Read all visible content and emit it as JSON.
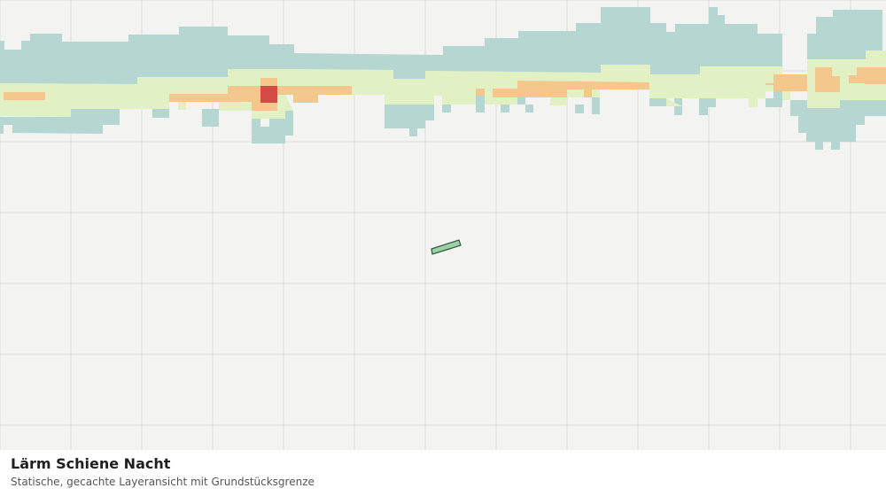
{
  "caption": {
    "title": "Lärm Schiene Nacht",
    "subtitle": "Statische, gecachte Layeransicht mit Grundstücksgrenze"
  },
  "map": {
    "background_color": "#f3f4f2",
    "grid_color": "#dcdedb",
    "noise_levels": [
      {
        "level": "level-1",
        "color": "#b5d6d1"
      },
      {
        "level": "level-2",
        "color": "#e2f1c4"
      },
      {
        "level": "level-3",
        "color": "#f4c88c"
      },
      {
        "level": "level-4",
        "color": "#d54b45"
      }
    ],
    "parcel": {
      "fill": "#9ed0a8",
      "stroke": "#2f5a3c"
    }
  }
}
